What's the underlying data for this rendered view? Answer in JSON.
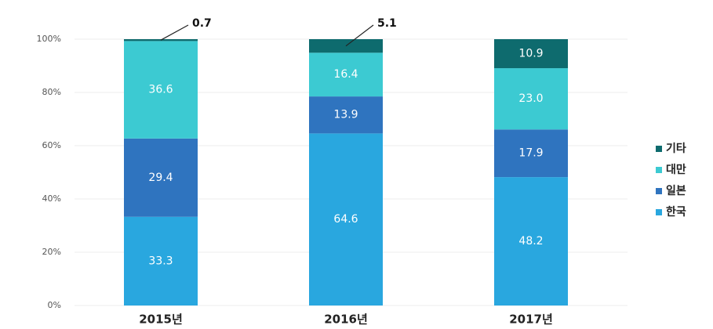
{
  "chart_data": {
    "type": "stacked_bar",
    "categories": [
      "2015년",
      "2016년",
      "2017년"
    ],
    "series": [
      {
        "name": "한국",
        "color": "#29a7df",
        "values": [
          33.3,
          64.6,
          48.2
        ],
        "value_labels": [
          "33.3",
          "64.6",
          "48.2"
        ]
      },
      {
        "name": "일본",
        "color": "#2f74bf",
        "values": [
          29.4,
          13.9,
          17.9
        ],
        "value_labels": [
          "29.4",
          "13.9",
          "17.9"
        ]
      },
      {
        "name": "대만",
        "color": "#3ccad2",
        "values": [
          36.6,
          16.4,
          23.0
        ],
        "value_labels": [
          "36.6",
          "16.4",
          "23.0"
        ]
      },
      {
        "name": "기타",
        "color": "#0e6b6e",
        "values": [
          0.7,
          5.1,
          10.9
        ],
        "value_labels": [
          "0.7",
          "5.1",
          "10.9"
        ]
      }
    ],
    "ylim": [
      0,
      100
    ],
    "yticks": [
      {
        "value": 0,
        "label": "0%"
      },
      {
        "value": 20,
        "label": "20%"
      },
      {
        "value": 40,
        "label": "40%"
      },
      {
        "value": 60,
        "label": "60%"
      },
      {
        "value": 80,
        "label": "80%"
      },
      {
        "value": 100,
        "label": "100%"
      }
    ],
    "grid": true,
    "legend": "right"
  }
}
